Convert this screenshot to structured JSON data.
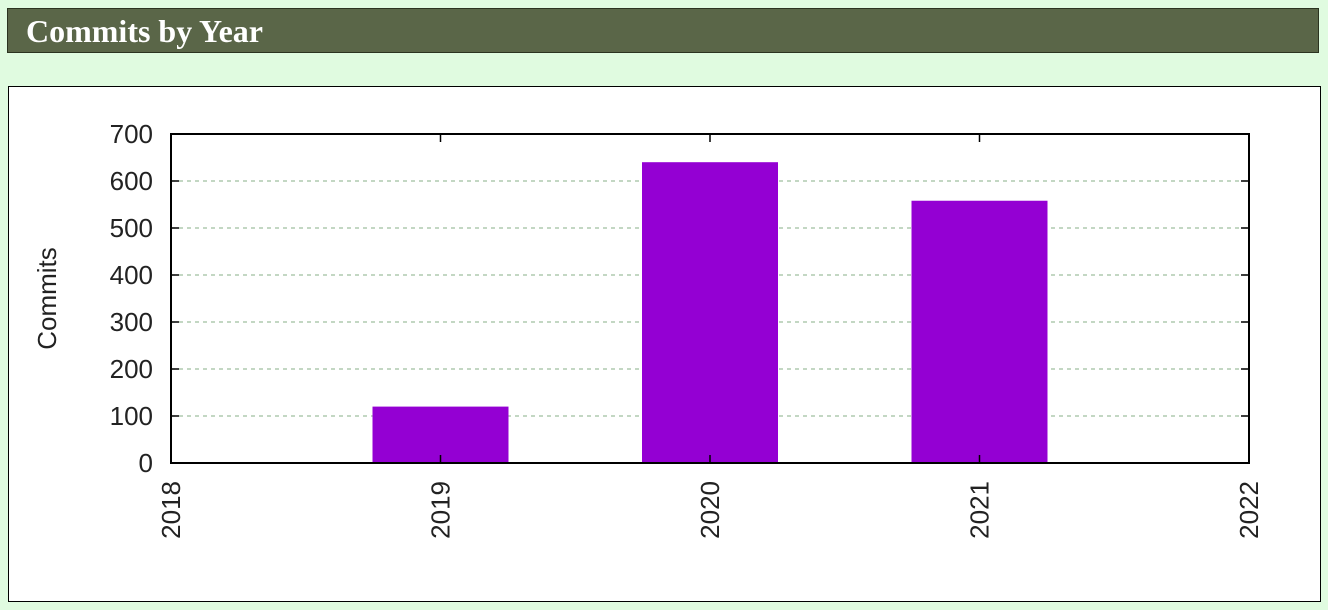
{
  "header": {
    "title": "Commits by Year"
  },
  "colors": {
    "header_bg": "#5a6648",
    "page_bg": "#e0fbe0",
    "bar": "#9400d3",
    "grid": "#9fbf9f"
  },
  "chart_data": {
    "type": "bar",
    "title": "",
    "xlabel": "",
    "ylabel": "Commits",
    "x_ticks": [
      "2018",
      "2019",
      "2020",
      "2021",
      "2022"
    ],
    "categories": [
      "2019",
      "2020",
      "2021"
    ],
    "values": [
      120,
      640,
      558
    ],
    "xlim": [
      2018,
      2022
    ],
    "ylim": [
      0,
      700
    ],
    "y_ticks": [
      0,
      100,
      200,
      300,
      400,
      500,
      600,
      700
    ],
    "grid": "horizontal dashed",
    "legend": "none"
  }
}
